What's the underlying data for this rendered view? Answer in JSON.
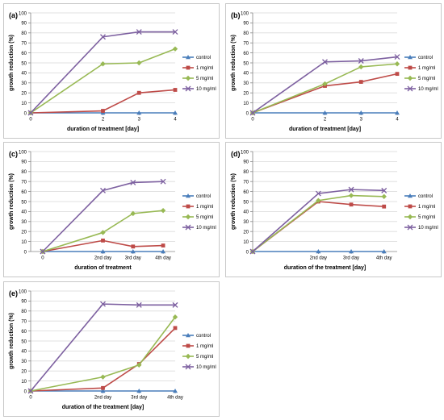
{
  "series_colors": [
    "#4a7ebb",
    "#be4b48",
    "#98b954",
    "#7d60a0"
  ],
  "chart_data": [
    {
      "type": "line",
      "panel_label": "(a)",
      "x": [
        0,
        2,
        3,
        4
      ],
      "x_tick_labels": [
        "0",
        "2",
        "3",
        "4"
      ],
      "xlim": [
        0,
        4
      ],
      "xlabel": "duration of treatment [day]",
      "ylabel": "growth reduction (%)",
      "ylim": [
        0,
        100
      ],
      "yticks": [
        0,
        10,
        20,
        30,
        40,
        50,
        60,
        70,
        80,
        90,
        100
      ],
      "grid": "horizontal",
      "legend_position": "right",
      "series": [
        {
          "name": "control",
          "marker": "triangle",
          "values": [
            0,
            0,
            0,
            0
          ]
        },
        {
          "name": "1 mg/ml",
          "marker": "square",
          "values": [
            0,
            2,
            20,
            23
          ]
        },
        {
          "name": "5 mg/ml",
          "marker": "diamond",
          "values": [
            0,
            49,
            50,
            64
          ]
        },
        {
          "name": "10 mg/ml",
          "marker": "x",
          "values": [
            0,
            76,
            81,
            81
          ]
        }
      ]
    },
    {
      "type": "line",
      "panel_label": "(b)",
      "x": [
        0,
        2,
        3,
        4
      ],
      "x_tick_labels": [
        "0",
        "2",
        "3",
        "4"
      ],
      "xlim": [
        0,
        4
      ],
      "xlabel": "duration of treatment [day]",
      "ylabel": "growth reduction (%)",
      "ylim": [
        0,
        100
      ],
      "yticks": [
        0,
        10,
        20,
        30,
        40,
        50,
        60,
        70,
        80,
        90,
        100
      ],
      "grid": "horizontal",
      "legend_position": "right",
      "series": [
        {
          "name": "control",
          "marker": "triangle",
          "values": [
            0,
            0,
            0,
            0
          ]
        },
        {
          "name": "1 mg/ml",
          "marker": "square",
          "values": [
            0,
            27,
            31,
            39
          ]
        },
        {
          "name": "5 mg/ml",
          "marker": "diamond",
          "values": [
            0,
            29,
            46,
            49
          ]
        },
        {
          "name": "10 mg/ml",
          "marker": "x",
          "values": [
            0,
            51,
            52,
            56
          ]
        }
      ]
    },
    {
      "type": "line",
      "panel_label": "(c)",
      "x": [
        0,
        2,
        3,
        4
      ],
      "x_tick_labels": [
        "0",
        "2nd day",
        "3rd day",
        "4th day"
      ],
      "xlim": [
        -0.4,
        4.4
      ],
      "xlabel": "duration of treatment",
      "ylabel": "growth reduction (%)",
      "ylim": [
        0,
        100
      ],
      "yticks": [
        0,
        10,
        20,
        30,
        40,
        50,
        60,
        70,
        80,
        90,
        100
      ],
      "grid": "horizontal",
      "legend_position": "right",
      "series": [
        {
          "name": "control",
          "marker": "triangle",
          "values": [
            0,
            0,
            0,
            0
          ]
        },
        {
          "name": "1 mg/ml",
          "marker": "square",
          "values": [
            0,
            11,
            5,
            6
          ]
        },
        {
          "name": "5 mg/ml",
          "marker": "diamond",
          "values": [
            0,
            19,
            38,
            41
          ]
        },
        {
          "name": "10 mg/ml",
          "marker": "x",
          "values": [
            0,
            61,
            69,
            70
          ]
        }
      ]
    },
    {
      "type": "line",
      "panel_label": "(d)",
      "x": [
        0,
        2,
        3,
        4
      ],
      "x_tick_labels": [
        "",
        "2nd day",
        "3rd day",
        "4th day"
      ],
      "xlim": [
        0,
        4.4
      ],
      "xlabel": "duration of the treatment [day]",
      "ylabel": "growth reduction (%)",
      "ylim": [
        0,
        100
      ],
      "yticks": [
        0,
        10,
        20,
        30,
        40,
        50,
        60,
        70,
        80,
        90,
        100
      ],
      "grid": "horizontal",
      "legend_position": "right",
      "series": [
        {
          "name": "control",
          "marker": "triangle",
          "values": [
            0,
            0,
            0,
            0
          ]
        },
        {
          "name": "1 mg/ml",
          "marker": "square",
          "values": [
            0,
            50,
            47,
            45
          ]
        },
        {
          "name": "5 mg/ml",
          "marker": "diamond",
          "values": [
            0,
            51,
            56,
            55
          ]
        },
        {
          "name": "10 mg/ml",
          "marker": "x",
          "values": [
            0,
            58,
            62,
            61
          ]
        }
      ]
    },
    {
      "type": "line",
      "panel_label": "(e)",
      "x": [
        0,
        2,
        3,
        4
      ],
      "x_tick_labels": [
        "0",
        "2nd day",
        "3rd day",
        "4th day"
      ],
      "xlim": [
        0,
        4
      ],
      "xlabel": "duration of the treatment [day]",
      "ylabel": "growth reduction (%)",
      "ylim": [
        0,
        100
      ],
      "yticks": [
        0,
        10,
        20,
        30,
        40,
        50,
        60,
        70,
        80,
        90,
        100
      ],
      "grid": "horizontal",
      "legend_position": "right",
      "series": [
        {
          "name": "control",
          "marker": "triangle",
          "values": [
            0,
            0,
            0,
            0
          ]
        },
        {
          "name": "1 mg/ml",
          "marker": "square",
          "values": [
            0,
            3,
            27,
            63
          ]
        },
        {
          "name": "5 mg/ml",
          "marker": "diamond",
          "values": [
            0,
            14,
            26,
            74
          ]
        },
        {
          "name": "10 mg/ml",
          "marker": "x",
          "values": [
            0,
            87,
            86,
            86
          ]
        }
      ]
    }
  ]
}
